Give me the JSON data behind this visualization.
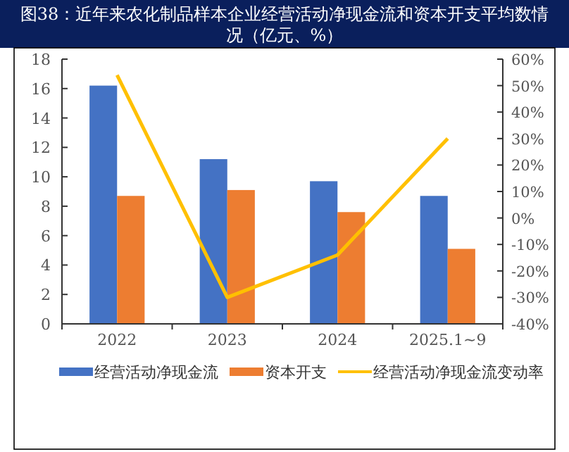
{
  "chart_data": {
    "type": "bar",
    "title": "图38：近年来农化制品样本企业经营活动净现金流和资本开支平均数情况（亿元、%）",
    "categories": [
      "2022",
      "2023",
      "2024",
      "2025.1~9"
    ],
    "series": [
      {
        "name": "经营活动净现金流",
        "color": "#4472c4",
        "values": [
          16.2,
          11.2,
          9.7,
          8.7
        ]
      },
      {
        "name": "资本开支",
        "color": "#ed7d31",
        "values": [
          8.7,
          9.1,
          7.6,
          5.1
        ]
      },
      {
        "name": "经营活动净现金流变动率",
        "type": "line",
        "axis": "y2",
        "color": "#ffc000",
        "values": [
          54,
          -30,
          -14,
          30
        ]
      }
    ],
    "ylim": [
      0,
      18
    ],
    "yticks": [
      0,
      2,
      4,
      6,
      8,
      10,
      12,
      14,
      16,
      18
    ],
    "y2lim": [
      -40,
      60
    ],
    "y2ticks": [
      {
        "value": -40,
        "label": "-40%"
      },
      {
        "value": -30,
        "label": "-30%"
      },
      {
        "value": -20,
        "label": "-20%"
      },
      {
        "value": -10,
        "label": "-10%"
      },
      {
        "value": 0,
        "label": "0%"
      },
      {
        "value": 10,
        "label": "10%"
      },
      {
        "value": 20,
        "label": "20%"
      },
      {
        "value": 30,
        "label": "30%"
      },
      {
        "value": 40,
        "label": "40%"
      },
      {
        "value": 50,
        "label": "50%"
      },
      {
        "value": 60,
        "label": "60%"
      }
    ],
    "grid": false,
    "legend": "bottom",
    "marker": "none"
  }
}
